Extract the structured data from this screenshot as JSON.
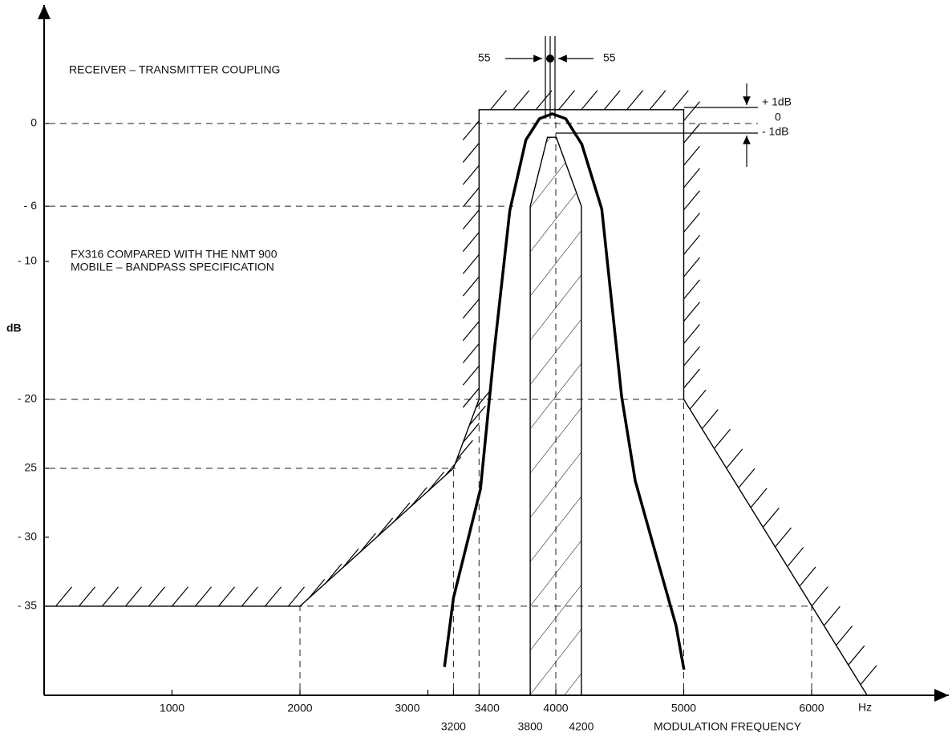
{
  "chart_data": {
    "type": "line",
    "title": "RECEIVER – TRANSMITTER COUPLING",
    "subtitle": [
      "FX316 COMPARED WITH THE NMT 900",
      "MOBILE – BANDPASS SPECIFICATION"
    ],
    "x_label": "MODULATION FREQUENCY",
    "x_unit": "Hz",
    "y_label": "dB",
    "annotations": [
      "55",
      "55",
      "+ 1dB",
      "0",
      "- 1dB"
    ],
    "xlim": [
      0,
      7000
    ],
    "ylim": [
      -41.4,
      8.4
    ],
    "xticks": [
      1000,
      2000,
      3000,
      3200,
      3400,
      3800,
      4000,
      4200,
      5000,
      6000
    ],
    "yticks": [
      {
        "value": 0,
        "label": "0"
      },
      {
        "value": -6,
        "label": "- 6"
      },
      {
        "value": -10,
        "label": "- 10"
      },
      {
        "value": -20,
        "label": "- 20"
      },
      {
        "value": -25,
        "label": "25"
      },
      {
        "value": -30,
        "label": "- 30"
      },
      {
        "value": -35,
        "label": "- 35"
      }
    ],
    "series": [
      {
        "color": "#000000",
        "x": [
          0,
          2000,
          3200,
          3400,
          3400,
          5000,
          5000,
          6430
        ],
        "values": [
          -35,
          -35,
          -25,
          -20,
          1,
          1,
          -20,
          -41.4
        ]
      },
      {
        "color": "#000000",
        "x": [
          3800,
          3800,
          3935,
          4004,
          4200,
          4200
        ],
        "values": [
          -41.4,
          -6,
          -1,
          -1,
          -6,
          -41.4
        ]
      },
      {
        "color": "#000000",
        "x": [
          3130,
          3200,
          3411,
          3517,
          3641,
          3766,
          3872,
          3972,
          4078,
          4203,
          4359,
          4515,
          4621,
          4796,
          4940,
          5002
        ],
        "values": [
          -39.4,
          -34.4,
          -26.5,
          -16.6,
          -6.3,
          -1.2,
          0.35,
          0.7,
          0.35,
          -1.5,
          -6.2,
          -19.8,
          -25.9,
          -31.7,
          -36.4,
          -39.6
        ]
      }
    ]
  }
}
